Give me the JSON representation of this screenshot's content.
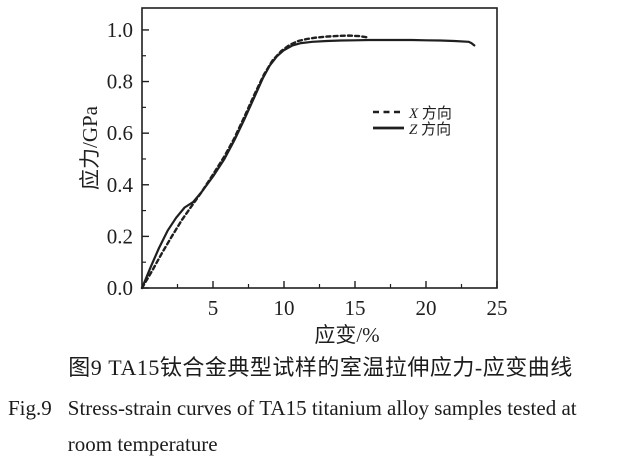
{
  "figure": {
    "caption_zh": "图9 TA15钛合金典型试样的室温拉伸应力-应变曲线",
    "caption_en_label": "Fig.9",
    "caption_en_line1": "Stress-strain curves of TA15 titanium alloy samples tested at",
    "caption_en_line2": "room temperature"
  },
  "chart_data": {
    "type": "line",
    "title": "",
    "xlabel": "应变/%",
    "ylabel": "应力/GPa",
    "xlim": [
      0,
      25
    ],
    "ylim": [
      0,
      1.085
    ],
    "grid": false,
    "legend_position": "inside-right-upper",
    "x_ticks": [
      {
        "v": 5,
        "label": "5"
      },
      {
        "v": 10,
        "label": "10"
      },
      {
        "v": 15,
        "label": "15"
      },
      {
        "v": 20,
        "label": "20"
      },
      {
        "v": 25,
        "label": "25"
      }
    ],
    "x_minor_ticks": [
      2.5,
      7.5,
      12.5,
      17.5,
      22.5
    ],
    "y_ticks": [
      {
        "v": 0.0,
        "label": "0.0"
      },
      {
        "v": 0.2,
        "label": "0.2"
      },
      {
        "v": 0.4,
        "label": "0.4"
      },
      {
        "v": 0.6,
        "label": "0.6"
      },
      {
        "v": 0.8,
        "label": "0.8"
      },
      {
        "v": 1.0,
        "label": "1.0"
      }
    ],
    "y_minor_ticks": [
      0.1,
      0.3,
      0.5,
      0.7,
      0.9
    ],
    "colors": {
      "line": "#1f1f1f",
      "text": "#1f1f1f"
    },
    "series": [
      {
        "name": "X方向",
        "symbol": "X",
        "suffix": "方向",
        "style": "dashed",
        "points": [
          [
            0,
            0
          ],
          [
            0.7,
            0.065
          ],
          [
            1.4,
            0.135
          ],
          [
            2.1,
            0.2
          ],
          [
            2.8,
            0.263
          ],
          [
            3.5,
            0.318
          ],
          [
            4.2,
            0.372
          ],
          [
            5.0,
            0.44
          ],
          [
            5.8,
            0.51
          ],
          [
            6.5,
            0.58
          ],
          [
            7.2,
            0.662
          ],
          [
            7.9,
            0.748
          ],
          [
            8.6,
            0.828
          ],
          [
            9.2,
            0.882
          ],
          [
            9.8,
            0.918
          ],
          [
            10.4,
            0.942
          ],
          [
            11.0,
            0.957
          ],
          [
            11.6,
            0.965
          ],
          [
            12.2,
            0.97
          ],
          [
            13.0,
            0.974
          ],
          [
            13.8,
            0.977
          ],
          [
            14.6,
            0.978
          ],
          [
            15.3,
            0.976
          ],
          [
            16.0,
            0.97
          ]
        ]
      },
      {
        "name": "Z方向",
        "symbol": "Z",
        "suffix": "方向",
        "style": "solid",
        "points": [
          [
            0,
            0
          ],
          [
            0.6,
            0.08
          ],
          [
            1.2,
            0.155
          ],
          [
            1.8,
            0.222
          ],
          [
            2.4,
            0.272
          ],
          [
            3.0,
            0.312
          ],
          [
            3.6,
            0.333
          ],
          [
            4.2,
            0.372
          ],
          [
            5.0,
            0.432
          ],
          [
            5.8,
            0.5
          ],
          [
            6.5,
            0.572
          ],
          [
            7.2,
            0.652
          ],
          [
            7.9,
            0.738
          ],
          [
            8.5,
            0.812
          ],
          [
            9.0,
            0.862
          ],
          [
            9.5,
            0.898
          ],
          [
            10.0,
            0.922
          ],
          [
            10.6,
            0.94
          ],
          [
            11.2,
            0.949
          ],
          [
            12,
            0.954
          ],
          [
            13,
            0.957
          ],
          [
            14,
            0.959
          ],
          [
            15,
            0.96
          ],
          [
            16,
            0.961
          ],
          [
            17,
            0.961
          ],
          [
            18,
            0.961
          ],
          [
            19,
            0.961
          ],
          [
            20,
            0.96
          ],
          [
            21,
            0.959
          ],
          [
            22,
            0.957
          ],
          [
            23,
            0.954
          ],
          [
            23.2,
            0.949
          ],
          [
            23.4,
            0.94
          ]
        ]
      }
    ]
  }
}
